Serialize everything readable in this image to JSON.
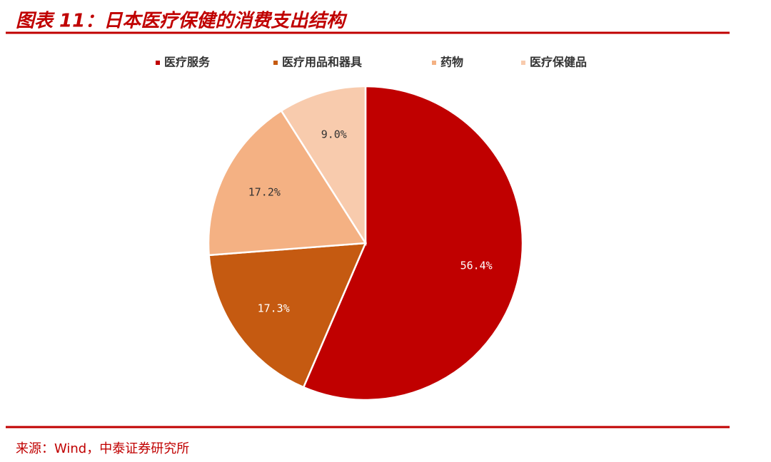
{
  "chart_data": {
    "type": "pie",
    "title": "图表 11：日本医疗保健的消费支出结构",
    "categories": [
      "医疗服务",
      "医疗用品和器具",
      "药物",
      "医疗保健品"
    ],
    "values": [
      56.4,
      17.3,
      17.2,
      9.0
    ],
    "value_labels": [
      "56.4%",
      "17.3%",
      "17.2%",
      "9.0%"
    ],
    "colors": [
      "#c00000",
      "#c55a11",
      "#f4b183",
      "#f8cbad"
    ],
    "legend": "top"
  },
  "source": "来源：Wind，中泰证券研究所"
}
